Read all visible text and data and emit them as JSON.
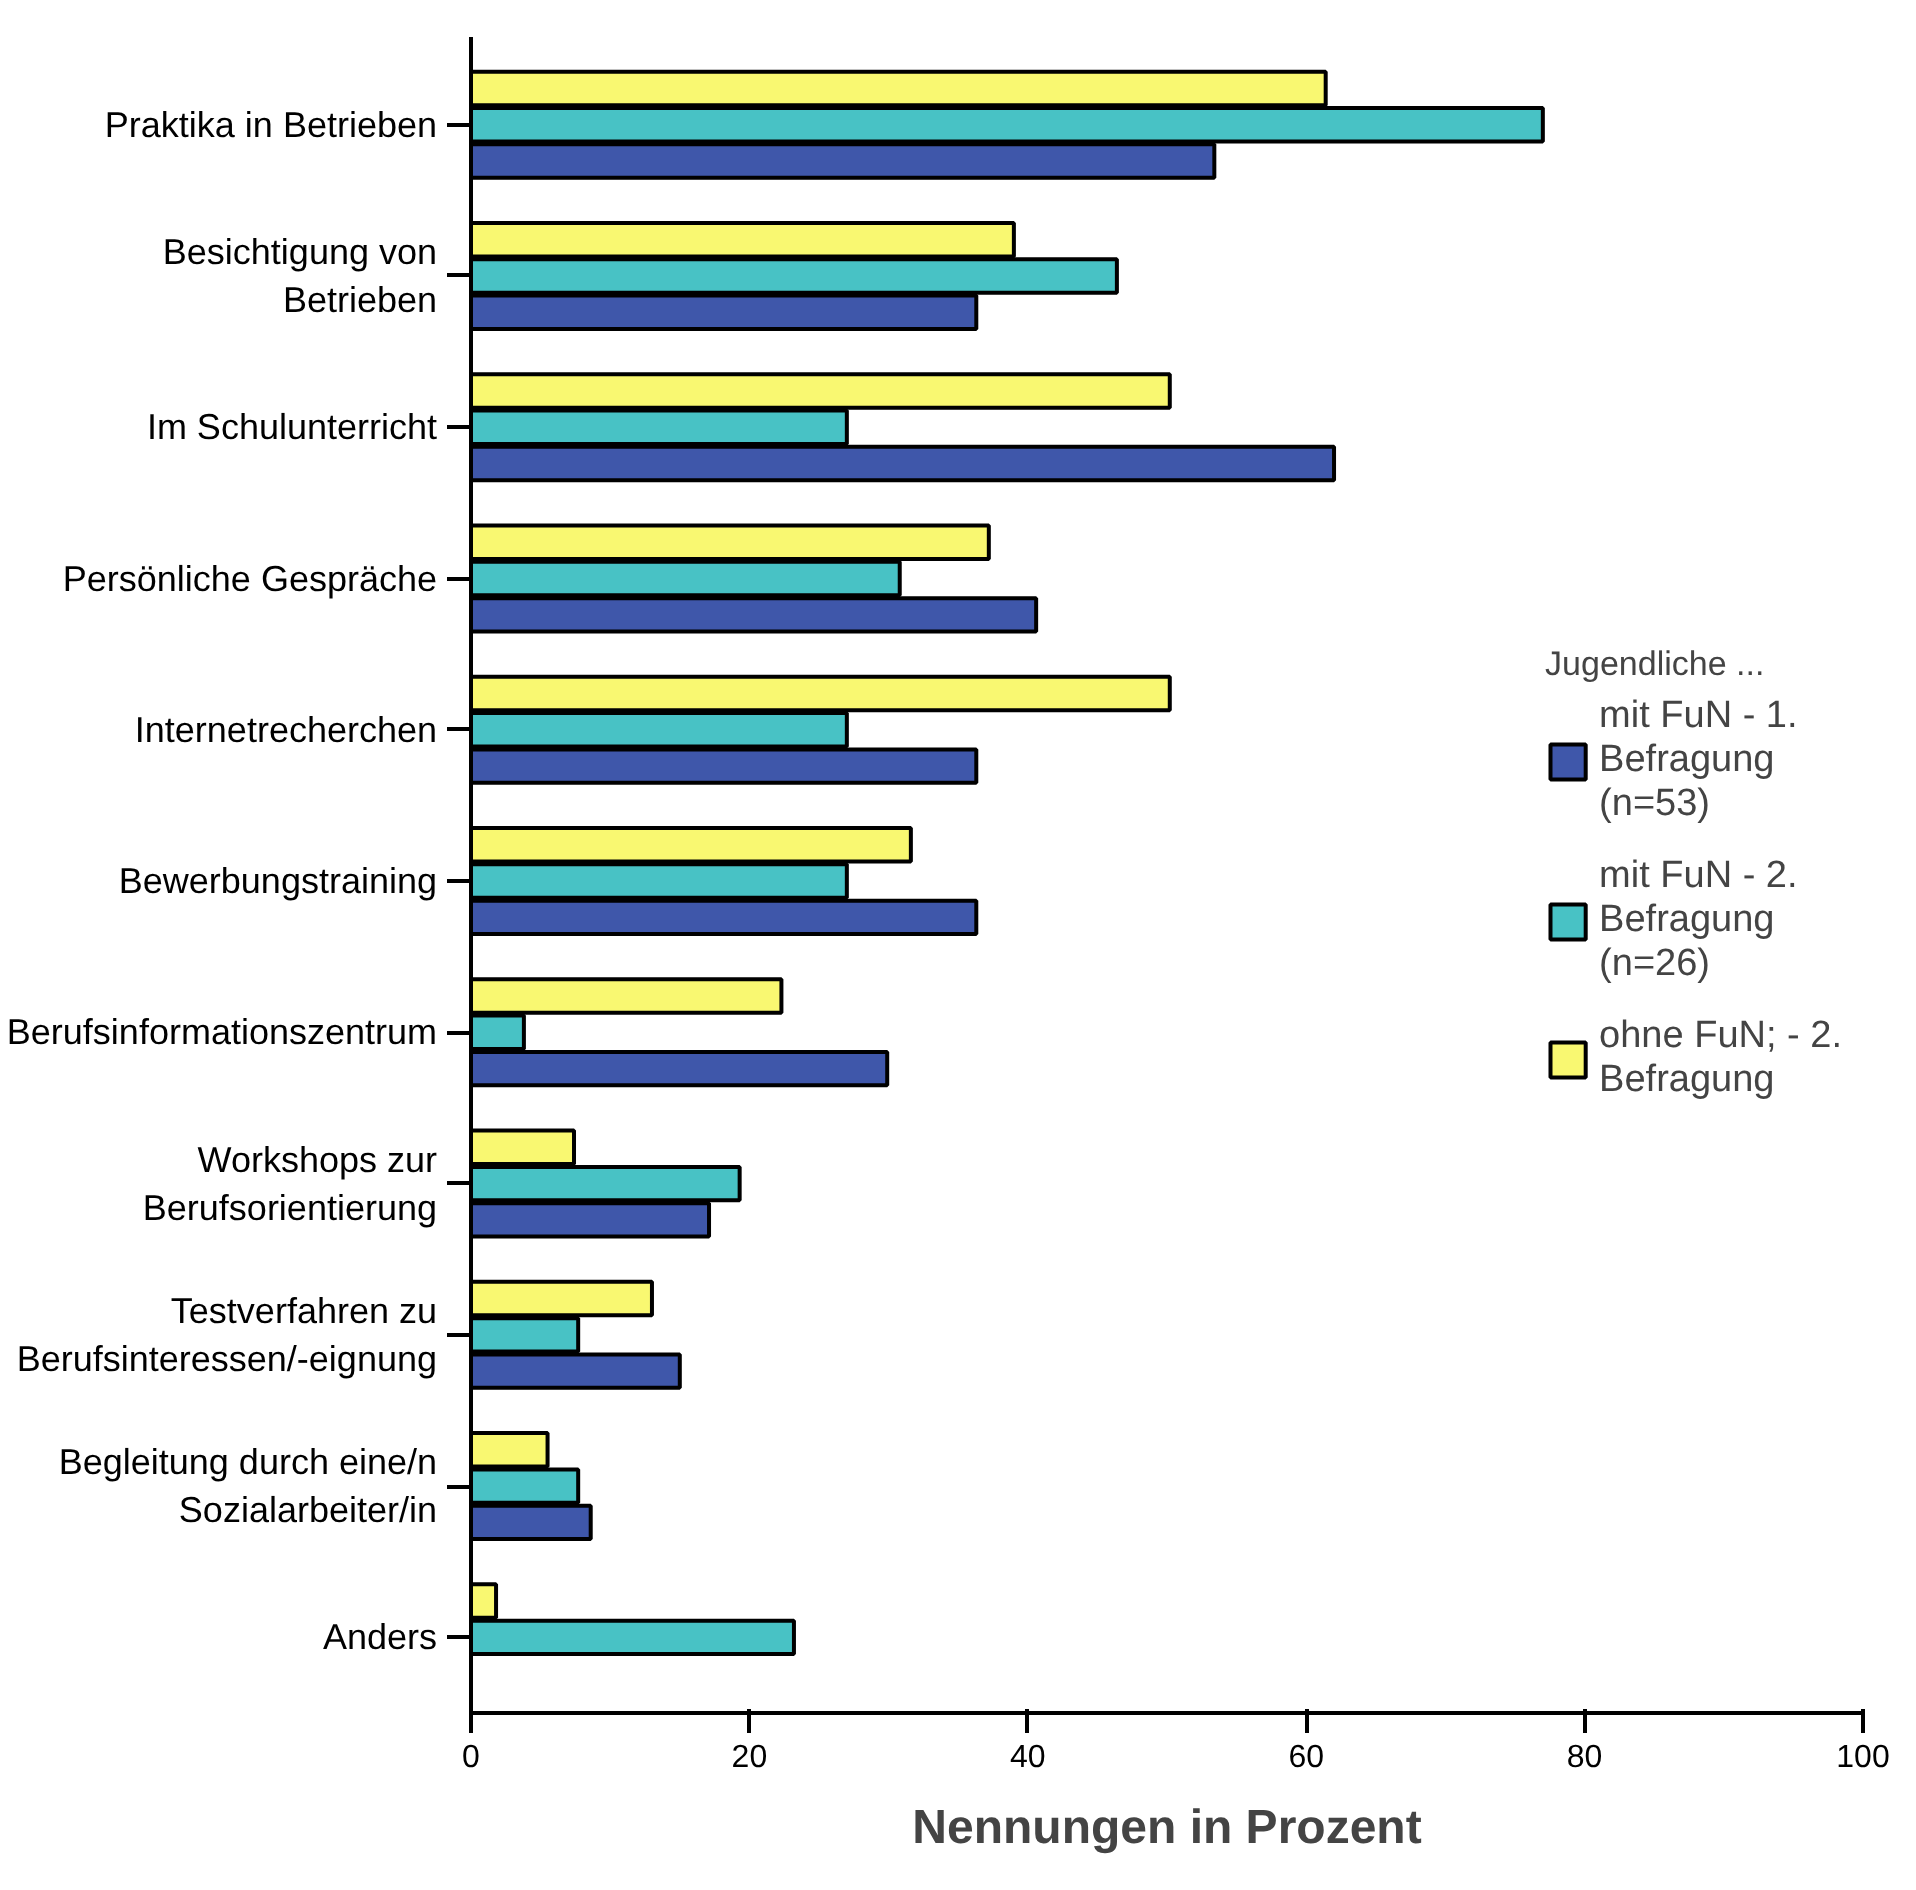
{
  "chart_data": {
    "type": "bar",
    "orientation": "horizontal",
    "xlabel": "Nennungen in Prozent",
    "legend_title": "Jugendliche ...",
    "legend": "right",
    "categories": [
      "Praktika in Betrieben",
      "Besichtigung von Betrieben",
      "Im Schulunterricht",
      "Persönliche Gespräche",
      "Internetrecherchen",
      "Bewerbungstraining",
      "Berufsinformationszentrum",
      "Workshops zur Berufsorientierung",
      "Testverfahren zu Berufsinteressen/-eignung",
      "Begleitung durch eine/n Sozialarbeiter/in",
      "Anders"
    ],
    "series": [
      {
        "name": "mit FuN - 1. Befragung (n=53)",
        "color": "#3f57aa",
        "values": [
          53.4,
          36.3,
          62.0,
          40.6,
          36.3,
          36.3,
          29.9,
          17.1,
          15.0,
          8.6,
          null
        ]
      },
      {
        "name": "mit FuN - 2. Befragung (n=26)",
        "color": "#48c2c5",
        "values": [
          77.0,
          46.4,
          27.0,
          30.8,
          27.0,
          27.0,
          3.8,
          19.3,
          7.7,
          7.7,
          23.2
        ]
      },
      {
        "name": "ohne FuN; - 2. Befragung",
        "color": "#f9f871",
        "values": [
          61.4,
          39.0,
          50.2,
          37.2,
          50.2,
          31.6,
          22.3,
          7.4,
          13.0,
          5.5,
          1.8
        ]
      }
    ],
    "xlim": [
      0,
      100
    ],
    "xticks": [
      0,
      20,
      40,
      60,
      80,
      100
    ],
    "grid": false
  }
}
